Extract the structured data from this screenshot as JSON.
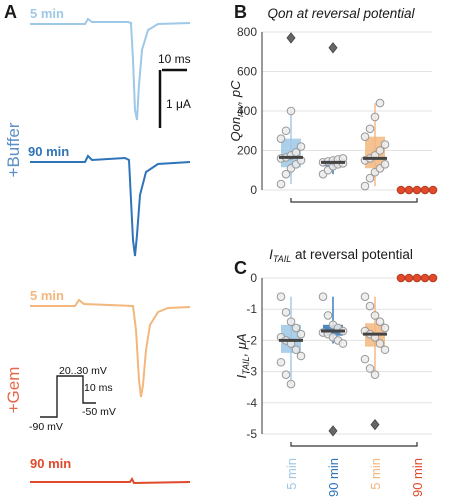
{
  "panel_a": {
    "label": "A",
    "conditions": [
      {
        "name": "+Buffer",
        "color": "#5b8ec5"
      },
      {
        "name": "+Gem",
        "color": "#e36a4a"
      }
    ],
    "traces": [
      {
        "label": "5 min",
        "color": "#9fc8e6"
      },
      {
        "label": "90 min",
        "color": "#2e74b8"
      },
      {
        "label": "5 min",
        "color": "#f3b77e"
      },
      {
        "label": "90 min",
        "color": "#e04a2a"
      }
    ],
    "scalebar": {
      "time": "10 ms",
      "current": "1 μA"
    },
    "protocol": {
      "step": "20..30 mV",
      "duration": "10 ms",
      "hold": "-90 mV",
      "tail": "-50 mV"
    }
  },
  "chart_data": [
    {
      "type": "box-swarm",
      "panel": "B",
      "title": "Qon at reversal potential",
      "ylabel_main": "Qon",
      "ylabel_sub": "rev",
      "ylabel_unit": ", pC",
      "ylim": [
        0,
        800
      ],
      "yticks": [
        0,
        200,
        400,
        600,
        800
      ],
      "categories": [
        "5 min",
        "90 min",
        "5 min",
        "90 min"
      ],
      "colors": [
        "#9fc8e6",
        "#2e74b8",
        "#f3b77e",
        "#e04a2a"
      ],
      "series": [
        {
          "median": 165,
          "q1": 115,
          "q3": 260,
          "whisker_low": 30,
          "whisker_high": 400,
          "outliers": [
            770
          ],
          "points": [
            30,
            80,
            110,
            130,
            150,
            160,
            165,
            175,
            190,
            220,
            260,
            300,
            400
          ]
        },
        {
          "median": 140,
          "q1": 120,
          "q3": 150,
          "whisker_low": 80,
          "whisker_high": 160,
          "outliers": [
            720
          ],
          "points": [
            80,
            100,
            120,
            130,
            135,
            140,
            145,
            150,
            155,
            160
          ]
        },
        {
          "median": 160,
          "q1": 110,
          "q3": 270,
          "whisker_low": 20,
          "whisker_high": 440,
          "outliers": [],
          "points": [
            20,
            60,
            90,
            110,
            130,
            150,
            160,
            175,
            200,
            230,
            270,
            310,
            370,
            440
          ]
        },
        {
          "median": 0,
          "q1": 0,
          "q3": 0,
          "whisker_low": 0,
          "whisker_high": 0,
          "outliers": [],
          "points": [
            0,
            0,
            0,
            0,
            0
          ]
        }
      ]
    },
    {
      "type": "box-swarm",
      "panel": "C",
      "title": "I",
      "title_sub": "TAIL",
      "title_rest": " at reversal potential",
      "ylabel_main": "I",
      "ylabel_sub": "TAIL",
      "ylabel_unit": ", μA",
      "ylim": [
        -5,
        0
      ],
      "yticks": [
        0,
        -1,
        -2,
        -3,
        -4,
        -5
      ],
      "categories": [
        "5 min",
        "90 min",
        "5 min",
        "90 min"
      ],
      "colors": [
        "#9fc8e6",
        "#2e74b8",
        "#f3b77e",
        "#e04a2a"
      ],
      "series": [
        {
          "median": -2.0,
          "q1": -2.4,
          "q3": -1.5,
          "whisker_low": -3.4,
          "whisker_high": -0.6,
          "outliers": [],
          "points": [
            -0.6,
            -1.1,
            -1.4,
            -1.6,
            -1.8,
            -1.9,
            -2.0,
            -2.1,
            -2.3,
            -2.5,
            -2.7,
            -3.1,
            -3.4
          ]
        },
        {
          "median": -1.7,
          "q1": -1.85,
          "q3": -1.5,
          "whisker_low": -2.1,
          "whisker_high": -0.6,
          "outliers": [
            -4.9
          ],
          "points": [
            -0.6,
            -1.2,
            -1.5,
            -1.6,
            -1.7,
            -1.75,
            -1.8,
            -1.9,
            -2.0,
            -2.1
          ]
        },
        {
          "median": -1.8,
          "q1": -2.2,
          "q3": -1.45,
          "whisker_low": -3.1,
          "whisker_high": -0.6,
          "outliers": [
            -4.7
          ],
          "points": [
            -0.6,
            -0.9,
            -1.2,
            -1.4,
            -1.6,
            -1.7,
            -1.8,
            -1.9,
            -2.1,
            -2.3,
            -2.6,
            -2.9,
            -3.1
          ]
        },
        {
          "median": 0,
          "q1": 0,
          "q3": 0,
          "whisker_low": 0,
          "whisker_high": 0,
          "outliers": [],
          "points": [
            0,
            0,
            0,
            0,
            0
          ]
        }
      ]
    }
  ]
}
